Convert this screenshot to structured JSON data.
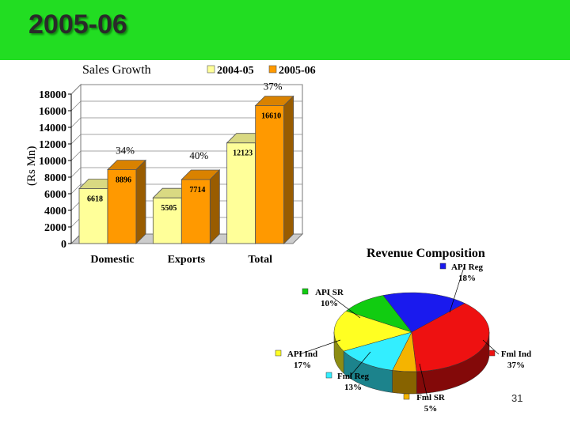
{
  "header": {
    "title": "2005-06"
  },
  "page_number": "31",
  "colors": {
    "banner": "#22dd22",
    "series_2004_05": "#ffff99",
    "series_2005_06": "#ff9900"
  },
  "chart_data": [
    {
      "type": "bar",
      "title": "Sales Growth",
      "ylabel": "(Rs Mn)",
      "xlabel": "",
      "categories": [
        "Domestic",
        "Exports",
        "Total"
      ],
      "ylim": [
        0,
        18000
      ],
      "yticks": [
        0,
        2000,
        4000,
        6000,
        8000,
        10000,
        12000,
        14000,
        16000,
        18000
      ],
      "series": [
        {
          "name": "2004-05",
          "values": [
            6618,
            5505,
            12123
          ],
          "labels": [
            "6618",
            "5505",
            "12123"
          ]
        },
        {
          "name": "2005-06",
          "values": [
            8896,
            7714,
            16610
          ],
          "labels": [
            "8896",
            "7714",
            "16610"
          ]
        }
      ],
      "growth_labels": [
        "34%",
        "40%",
        "37%"
      ],
      "legend_position": "top-right",
      "grid": true
    },
    {
      "type": "pie",
      "title": "Revenue Composition",
      "slices": [
        {
          "name": "API Reg",
          "value": 18,
          "label": "18%",
          "color": "#1a1aee"
        },
        {
          "name": "Fml Ind",
          "value": 37,
          "label": "37%",
          "color": "#ee1111"
        },
        {
          "name": "Fml SR",
          "value": 5,
          "label": "5%",
          "color": "#f5b400"
        },
        {
          "name": "Fml Reg",
          "value": 13,
          "label": "13%",
          "color": "#33eeff"
        },
        {
          "name": "API Ind",
          "value": 17,
          "label": "17%",
          "color": "#ffff22"
        },
        {
          "name": "API SR",
          "value": 10,
          "label": "10%",
          "color": "#11cc11"
        }
      ]
    }
  ]
}
